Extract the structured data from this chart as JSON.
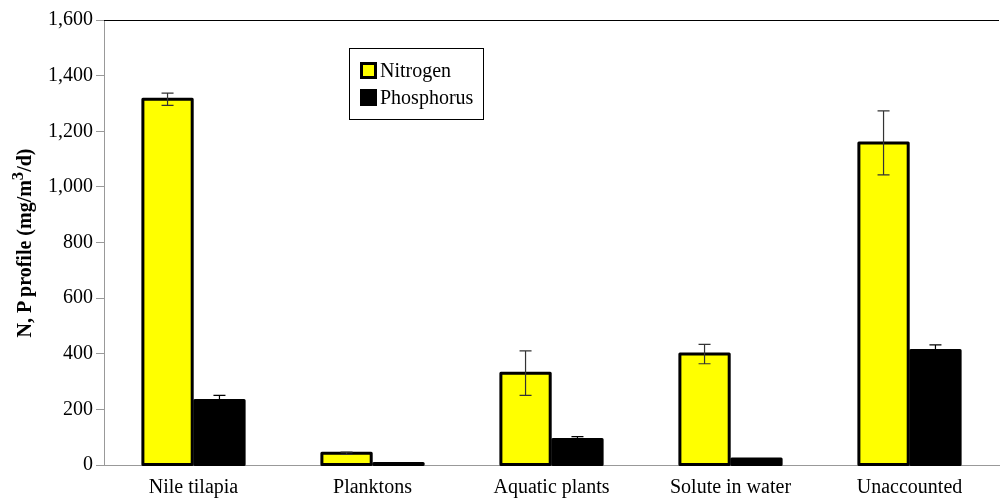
{
  "chart_data": {
    "type": "bar",
    "ylabel": "N, P profile (mg/m$^{3}$/d)",
    "categories": [
      "Nile tilapia",
      "Planktons",
      "Aquatic plants",
      "Solute in water",
      "Unaccounted"
    ],
    "series": [
      {
        "name": "Nitrogen",
        "color": "#ffff00",
        "values": [
          1315,
          42,
          330,
          399,
          1158
        ],
        "errors": [
          22,
          4,
          80,
          35,
          115
        ]
      },
      {
        "name": "Phosphorus",
        "color": "#000000",
        "values": [
          232,
          5,
          92,
          22,
          412
        ],
        "errors": [
          18,
          null,
          10,
          null,
          20
        ]
      }
    ],
    "ylim": [
      0,
      1600
    ],
    "yticks": [
      {
        "value": 0,
        "label": "0"
      },
      {
        "value": 200,
        "label": "200"
      },
      {
        "value": 400,
        "label": "400"
      },
      {
        "value": 600,
        "label": "600"
      },
      {
        "value": 800,
        "label": "800"
      },
      {
        "value": 1000,
        "label": "1,000"
      },
      {
        "value": 1200,
        "label": "1,200"
      },
      {
        "value": 1400,
        "label": "1,400"
      },
      {
        "value": 1600,
        "label": "1,600"
      }
    ],
    "grid": false,
    "legend": "top"
  }
}
